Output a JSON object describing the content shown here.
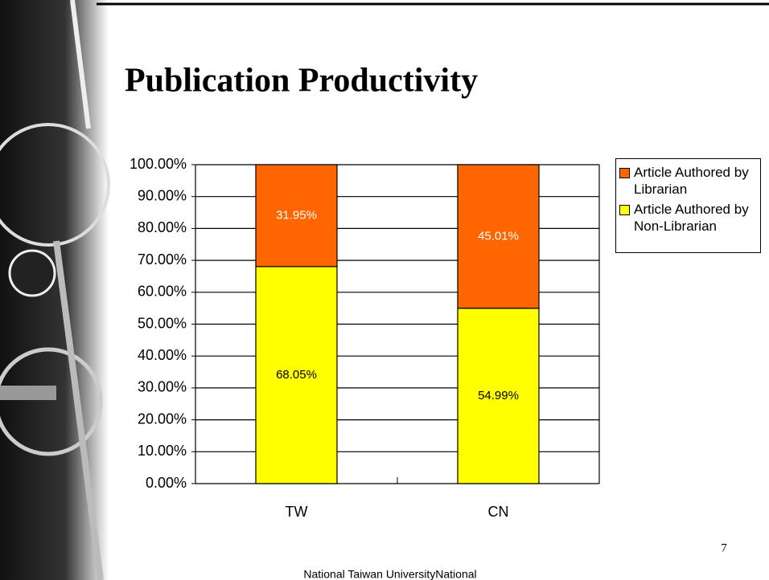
{
  "chart_data": {
    "type": "stacked_bar",
    "title": "Publication Productivity",
    "categories": [
      "TW",
      "CN"
    ],
    "series": [
      {
        "name": "Article Authored by Librarian",
        "color": "#ff6600",
        "label_color": "#ffffff",
        "values": [
          31.95,
          45.01
        ],
        "value_labels": [
          "31.95%",
          "45.01%"
        ]
      },
      {
        "name": "Article Authored by Non-Librarian",
        "color": "#ffff00",
        "label_color": "#000000",
        "values": [
          68.05,
          54.99
        ],
        "value_labels": [
          "68.05%",
          "54.99%"
        ]
      }
    ],
    "ylim": [
      0,
      100
    ],
    "yticks": [
      {
        "value": 0,
        "label": "0.00%"
      },
      {
        "value": 10,
        "label": "10.00%"
      },
      {
        "value": 20,
        "label": "20.00%"
      },
      {
        "value": 30,
        "label": "30.00%"
      },
      {
        "value": 40,
        "label": "40.00%"
      },
      {
        "value": 50,
        "label": "50.00%"
      },
      {
        "value": 60,
        "label": "60.00%"
      },
      {
        "value": 70,
        "label": "70.00%"
      },
      {
        "value": 80,
        "label": "80.00%"
      },
      {
        "value": 90,
        "label": "90.00%"
      },
      {
        "value": 100,
        "label": "100.00%"
      }
    ],
    "grid": true,
    "legend": "right"
  },
  "page_number": "7",
  "footer": "National Taiwan UniversityNational"
}
